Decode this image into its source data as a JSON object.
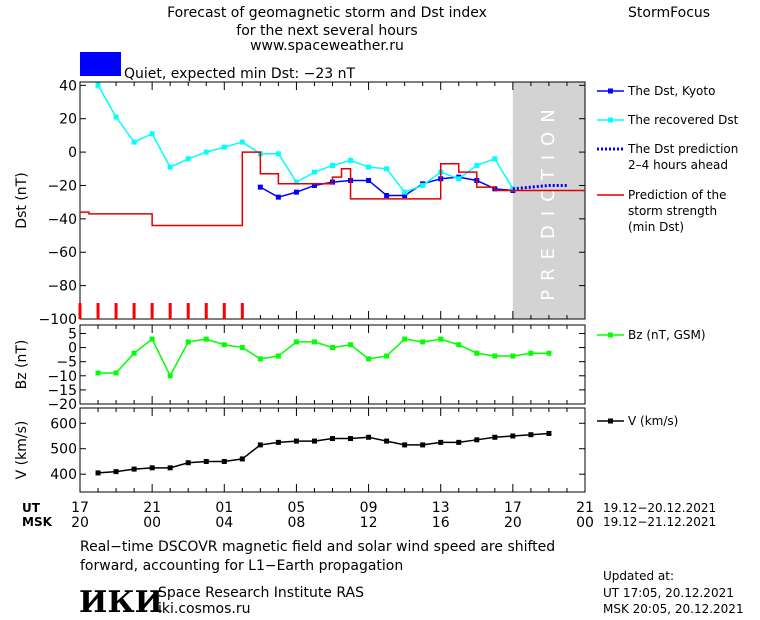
{
  "header": {
    "title_lines": [
      "Forecast of geomagnetic storm and Dst index",
      "for the next several hours",
      "www.spaceweather.ru"
    ],
    "brand": "StormFocus",
    "status_text": "Quiet, expected min Dst: −23 nT",
    "status_color": "#0000ff"
  },
  "chart_data": [
    {
      "id": "dst",
      "type": "line",
      "ylabel": "Dst (nT)",
      "ylim": [
        -100,
        42
      ],
      "yticks": [
        40,
        20,
        0,
        -20,
        -40,
        -60,
        -80,
        -100
      ],
      "x_unit": "hours since 17 UT 19.12.2021",
      "xlim": [
        0,
        28
      ],
      "prediction_zone": {
        "from": 24,
        "to": 28,
        "label": "PREDICTION",
        "color": "#d3d3d3"
      },
      "series": [
        {
          "name": "The Dst, Kyoto",
          "color": "#0000ff",
          "marker": "square",
          "x": [
            10,
            11,
            12,
            13,
            14,
            15,
            16,
            17,
            18,
            19,
            20,
            21,
            22,
            23,
            24
          ],
          "y": [
            -21,
            -27,
            -24,
            -20,
            -18,
            -17,
            -17,
            -26,
            -26,
            -19,
            -16,
            -15,
            -17,
            -22,
            -23
          ]
        },
        {
          "name": "The recovered Dst",
          "color": "#00ffff",
          "marker": "square",
          "x": [
            1,
            2,
            3,
            4,
            5,
            6,
            7,
            8,
            9,
            10,
            11,
            12,
            13,
            14,
            15,
            16,
            17,
            18,
            19,
            20,
            21,
            22,
            23,
            24
          ],
          "y": [
            40,
            21,
            6,
            11,
            -9,
            -4,
            0,
            3,
            6,
            -1,
            -1,
            -18,
            -12,
            -8,
            -5,
            -9,
            -10,
            -24,
            -20,
            -12,
            -16,
            -8,
            -4,
            -22
          ]
        },
        {
          "name": "The Dst prediction\n2–4 hours ahead",
          "color": "#0000ff",
          "dash": "dotted",
          "x": [
            24,
            25,
            26,
            27
          ],
          "y": [
            -22,
            -21,
            -20,
            -20
          ]
        },
        {
          "name": "Prediction of the\nstorm strength\n(min Dst)",
          "color": "#e00000",
          "step": true,
          "x": [
            0,
            0.5,
            3,
            4,
            7,
            8,
            9,
            10,
            11,
            12,
            13,
            14,
            14.5,
            15,
            16,
            17,
            18,
            19,
            20,
            21,
            22,
            23,
            24,
            28
          ],
          "y": [
            -36,
            -37,
            -37,
            -44,
            -44,
            -44,
            0,
            -13,
            -19,
            -19,
            -19,
            -15,
            -10,
            -28,
            -28,
            -28,
            -28,
            -28,
            -7,
            -12,
            -21,
            -23,
            -23,
            -23
          ]
        }
      ],
      "storm_ticks_x": [
        0,
        1,
        2,
        3,
        4,
        5,
        6,
        7,
        8,
        9
      ]
    },
    {
      "id": "bz",
      "type": "line",
      "ylabel": "Bz (nT)",
      "ylim": [
        -20,
        8
      ],
      "yticks": [
        5,
        0,
        -5,
        -10,
        -15,
        -20
      ],
      "series": [
        {
          "name": "Bz (nT, GSM)",
          "color": "#00ff00",
          "marker": "square",
          "x": [
            1,
            2,
            3,
            4,
            5,
            6,
            7,
            8,
            9,
            10,
            11,
            12,
            13,
            14,
            15,
            16,
            17,
            18,
            19,
            20,
            21,
            22,
            23,
            24,
            25,
            26
          ],
          "y": [
            -9,
            -9,
            -2,
            3,
            -10,
            2,
            3,
            1,
            0,
            -4,
            -3,
            2,
            2,
            0,
            1,
            -4,
            -3,
            3,
            2,
            3,
            1,
            -2,
            -3,
            -3,
            -2,
            -2
          ]
        }
      ]
    },
    {
      "id": "v",
      "type": "line",
      "ylabel": "V (km/s)",
      "ylim": [
        330,
        660
      ],
      "yticks": [
        600,
        500,
        400
      ],
      "series": [
        {
          "name": "V (km/s)",
          "color": "#000000",
          "marker": "square",
          "x": [
            1,
            2,
            3,
            4,
            5,
            6,
            7,
            8,
            9,
            10,
            11,
            12,
            13,
            14,
            15,
            16,
            17,
            18,
            19,
            20,
            21,
            22,
            23,
            24,
            25,
            26
          ],
          "y": [
            405,
            410,
            420,
            425,
            425,
            445,
            450,
            450,
            460,
            515,
            525,
            530,
            530,
            540,
            540,
            545,
            530,
            515,
            515,
            525,
            525,
            535,
            545,
            550,
            555,
            560
          ]
        }
      ]
    }
  ],
  "time_axis": {
    "ut_label": "UT",
    "msk_label": "MSK",
    "ut_ticks": [
      "17",
      "21",
      "01",
      "05",
      "09",
      "13",
      "17",
      "21"
    ],
    "msk_ticks": [
      "20",
      "00",
      "04",
      "08",
      "12",
      "16",
      "20",
      "00"
    ],
    "ut_range": "19.12−20.12.2021",
    "msk_range": "19.12−21.12.2021"
  },
  "footer": {
    "note_lines": [
      "Real−time DSCOVR magnetic field and solar wind speed are shifted",
      "forward, accounting for L1−Earth propagation"
    ],
    "logo_text": "ИКИ",
    "institute": "Space Research Institute RAS",
    "site": "iki.cosmos.ru",
    "updated_label": "Updated at:",
    "updated_ut": "UT   17:05, 20.12.2021",
    "updated_msk": "MSK 20:05, 20.12.2021"
  }
}
